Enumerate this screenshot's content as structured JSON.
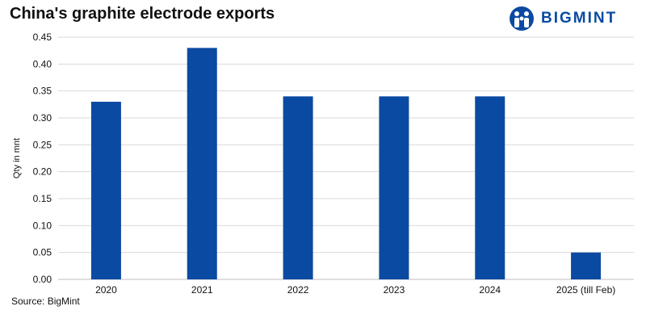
{
  "title": "China's graphite electrode exports",
  "logo": {
    "text": "BIGMINT",
    "color": "#0b4aa2"
  },
  "source": "Source: BigMint",
  "chart_data": {
    "type": "bar",
    "categories": [
      "2020",
      "2021",
      "2022",
      "2023",
      "2024",
      "2025 (till Feb)"
    ],
    "values": [
      0.33,
      0.43,
      0.34,
      0.34,
      0.34,
      0.05
    ],
    "ylabel": "Qty in mnt",
    "xlabel": "",
    "ylim": [
      0,
      0.45
    ],
    "yticks": [
      "0.00",
      "0.05",
      "0.10",
      "0.15",
      "0.20",
      "0.25",
      "0.30",
      "0.35",
      "0.40",
      "0.45"
    ],
    "grid": true,
    "legend": "none",
    "bar_color": "#0b4aa2",
    "grid_color": "#d9d9d9"
  }
}
